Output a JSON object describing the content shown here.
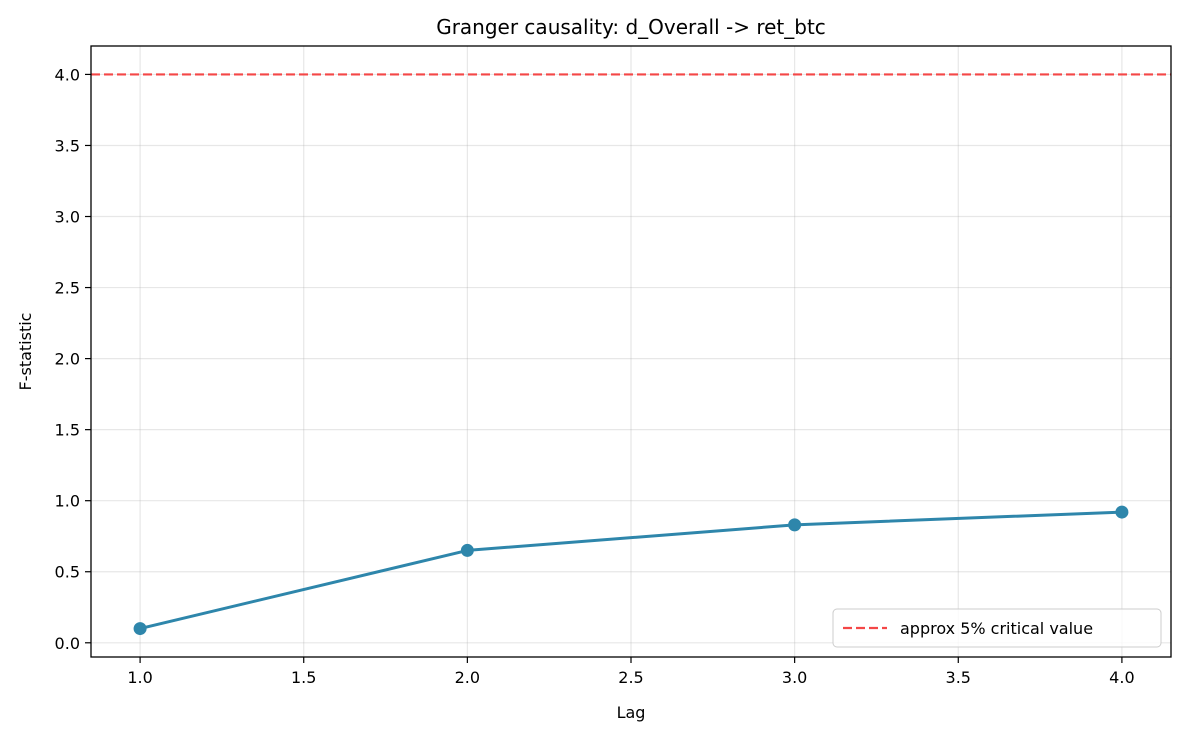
{
  "chart_data": {
    "type": "line",
    "title": "Granger causality: d_Overall -> ret_btc",
    "xlabel": "Lag",
    "ylabel": "F-statistic",
    "x": [
      1.0,
      2.0,
      3.0,
      4.0
    ],
    "series": [
      {
        "values": [
          0.1,
          0.65,
          0.83,
          0.92
        ],
        "color": "#2e86ab"
      }
    ],
    "reference_lines": [
      {
        "name": "approx 5% critical value",
        "y": 4.0,
        "color": "#f44747",
        "style": "dashed"
      }
    ],
    "xlim": [
      0.85,
      4.15
    ],
    "ylim": [
      -0.1,
      4.2
    ],
    "xticks": [
      1.0,
      1.5,
      2.0,
      2.5,
      3.0,
      3.5,
      4.0
    ],
    "xtick_labels": [
      "1.0",
      "1.5",
      "2.0",
      "2.5",
      "3.0",
      "3.5",
      "4.0"
    ],
    "yticks": [
      0.0,
      0.5,
      1.0,
      1.5,
      2.0,
      2.5,
      3.0,
      3.5,
      4.0
    ],
    "ytick_labels": [
      "0.0",
      "0.5",
      "1.0",
      "1.5",
      "2.0",
      "2.5",
      "3.0",
      "3.5",
      "4.0"
    ],
    "grid": true,
    "legend_position": "lower-right"
  }
}
